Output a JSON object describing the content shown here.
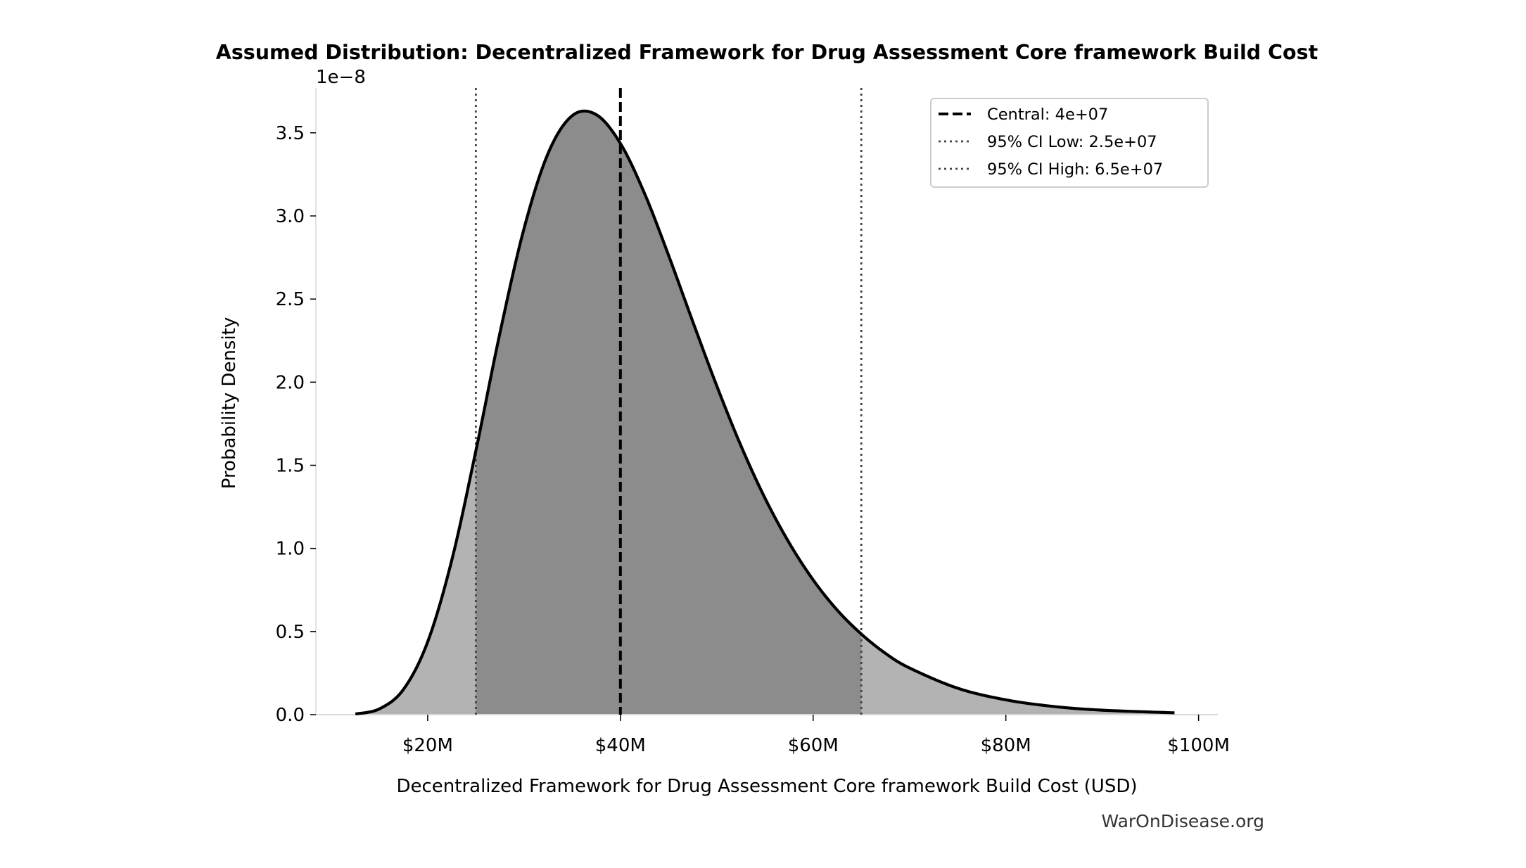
{
  "chart_data": {
    "type": "area",
    "title": "Assumed Distribution: Decentralized Framework for Drug Assessment Core framework Build Cost",
    "xlabel": "Decentralized Framework for Drug Assessment Core framework Build Cost (USD)",
    "ylabel": "Probability Density",
    "y_offset_label": "1e−8",
    "x_unit": "USD (millions)",
    "y_unit": "1e-8",
    "xlim": [
      8.4,
      102
    ],
    "ylim": [
      0,
      3.77
    ],
    "x_ticks": [
      20,
      40,
      60,
      80,
      100
    ],
    "x_tick_labels": [
      "$20M",
      "$40M",
      "$60M",
      "$80M",
      "$100M"
    ],
    "y_ticks": [
      0,
      0.5,
      1.0,
      1.5,
      2.0,
      2.5,
      3.0,
      3.5
    ],
    "y_tick_labels": [
      "0.0",
      "0.5",
      "1.0",
      "1.5",
      "2.0",
      "2.5",
      "3.0",
      "3.5"
    ],
    "grid": false,
    "legend_placement": "upper right",
    "x": [
      12.5,
      15,
      17.5,
      20,
      22.5,
      25,
      27.5,
      30,
      32.5,
      35,
      37.5,
      40,
      42.5,
      45,
      47.5,
      50,
      52.5,
      55,
      57.5,
      60,
      62.5,
      65,
      67.5,
      70,
      75,
      80,
      85,
      90,
      97.5
    ],
    "y": [
      0.004,
      0.035,
      0.153,
      0.438,
      0.929,
      1.587,
      2.296,
      2.924,
      3.377,
      3.603,
      3.609,
      3.436,
      3.136,
      2.763,
      2.366,
      1.978,
      1.619,
      1.303,
      1.035,
      0.811,
      0.629,
      0.485,
      0.369,
      0.281,
      0.159,
      0.089,
      0.049,
      0.027,
      0.011
    ],
    "reference_lines": [
      {
        "label": "Central: 4e+07",
        "x": 40,
        "style": "dashed",
        "color": "#000000"
      },
      {
        "label": "95% CI Low: 2.5e+07",
        "x": 25,
        "style": "dotted",
        "color": "#444444"
      },
      {
        "label": "95% CI High: 6.5e+07",
        "x": 65,
        "style": "dotted",
        "color": "#444444"
      }
    ],
    "ci_range": [
      25,
      65
    ],
    "colors": {
      "curve": "#000000",
      "tail_fill": "#b3b3b3",
      "ci_fill": "#8c8c8c",
      "spine": "#d9d9d9"
    }
  },
  "watermark": "WarOnDisease.org"
}
